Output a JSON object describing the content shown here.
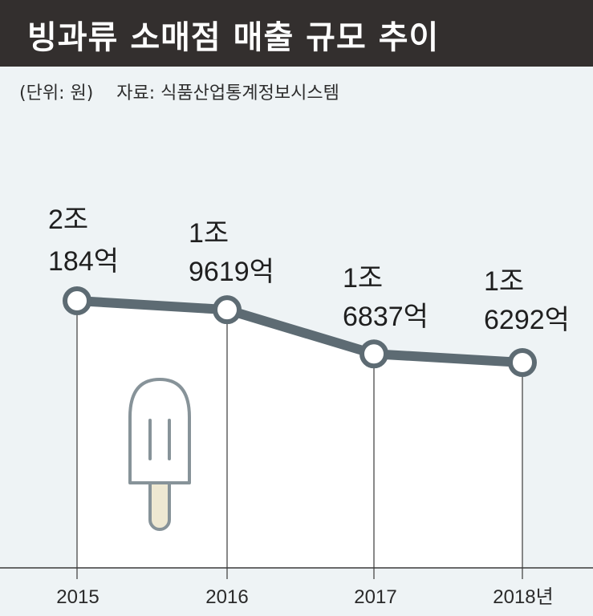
{
  "header": {
    "title": "빙과류 소매점 매출 규모 추이"
  },
  "meta": {
    "unit": "(단위: 원)",
    "source": "자료: 식품산업통계정보시스템"
  },
  "colors": {
    "header_bg": "#332f2e",
    "background": "#eef3f5",
    "plot_fill": "#ffffff",
    "line": "#5d6b73",
    "marker_fill": "#ffffff"
  },
  "icon": "popsicle-icon",
  "chart_data": {
    "type": "line",
    "categories": [
      "2015",
      "2016",
      "2017",
      "2018년"
    ],
    "values": [
      20184,
      19619,
      16837,
      16292
    ],
    "value_unit": "억 원",
    "data_labels": [
      [
        "2조",
        "184억"
      ],
      [
        "1조",
        "9619억"
      ],
      [
        "1조",
        "6837억"
      ],
      [
        "1조",
        "6292억"
      ]
    ],
    "title": "빙과류 소매점 매출 규모 추이",
    "xlabel": "",
    "ylabel": "",
    "grid": false,
    "area_fill_under_line": true
  }
}
